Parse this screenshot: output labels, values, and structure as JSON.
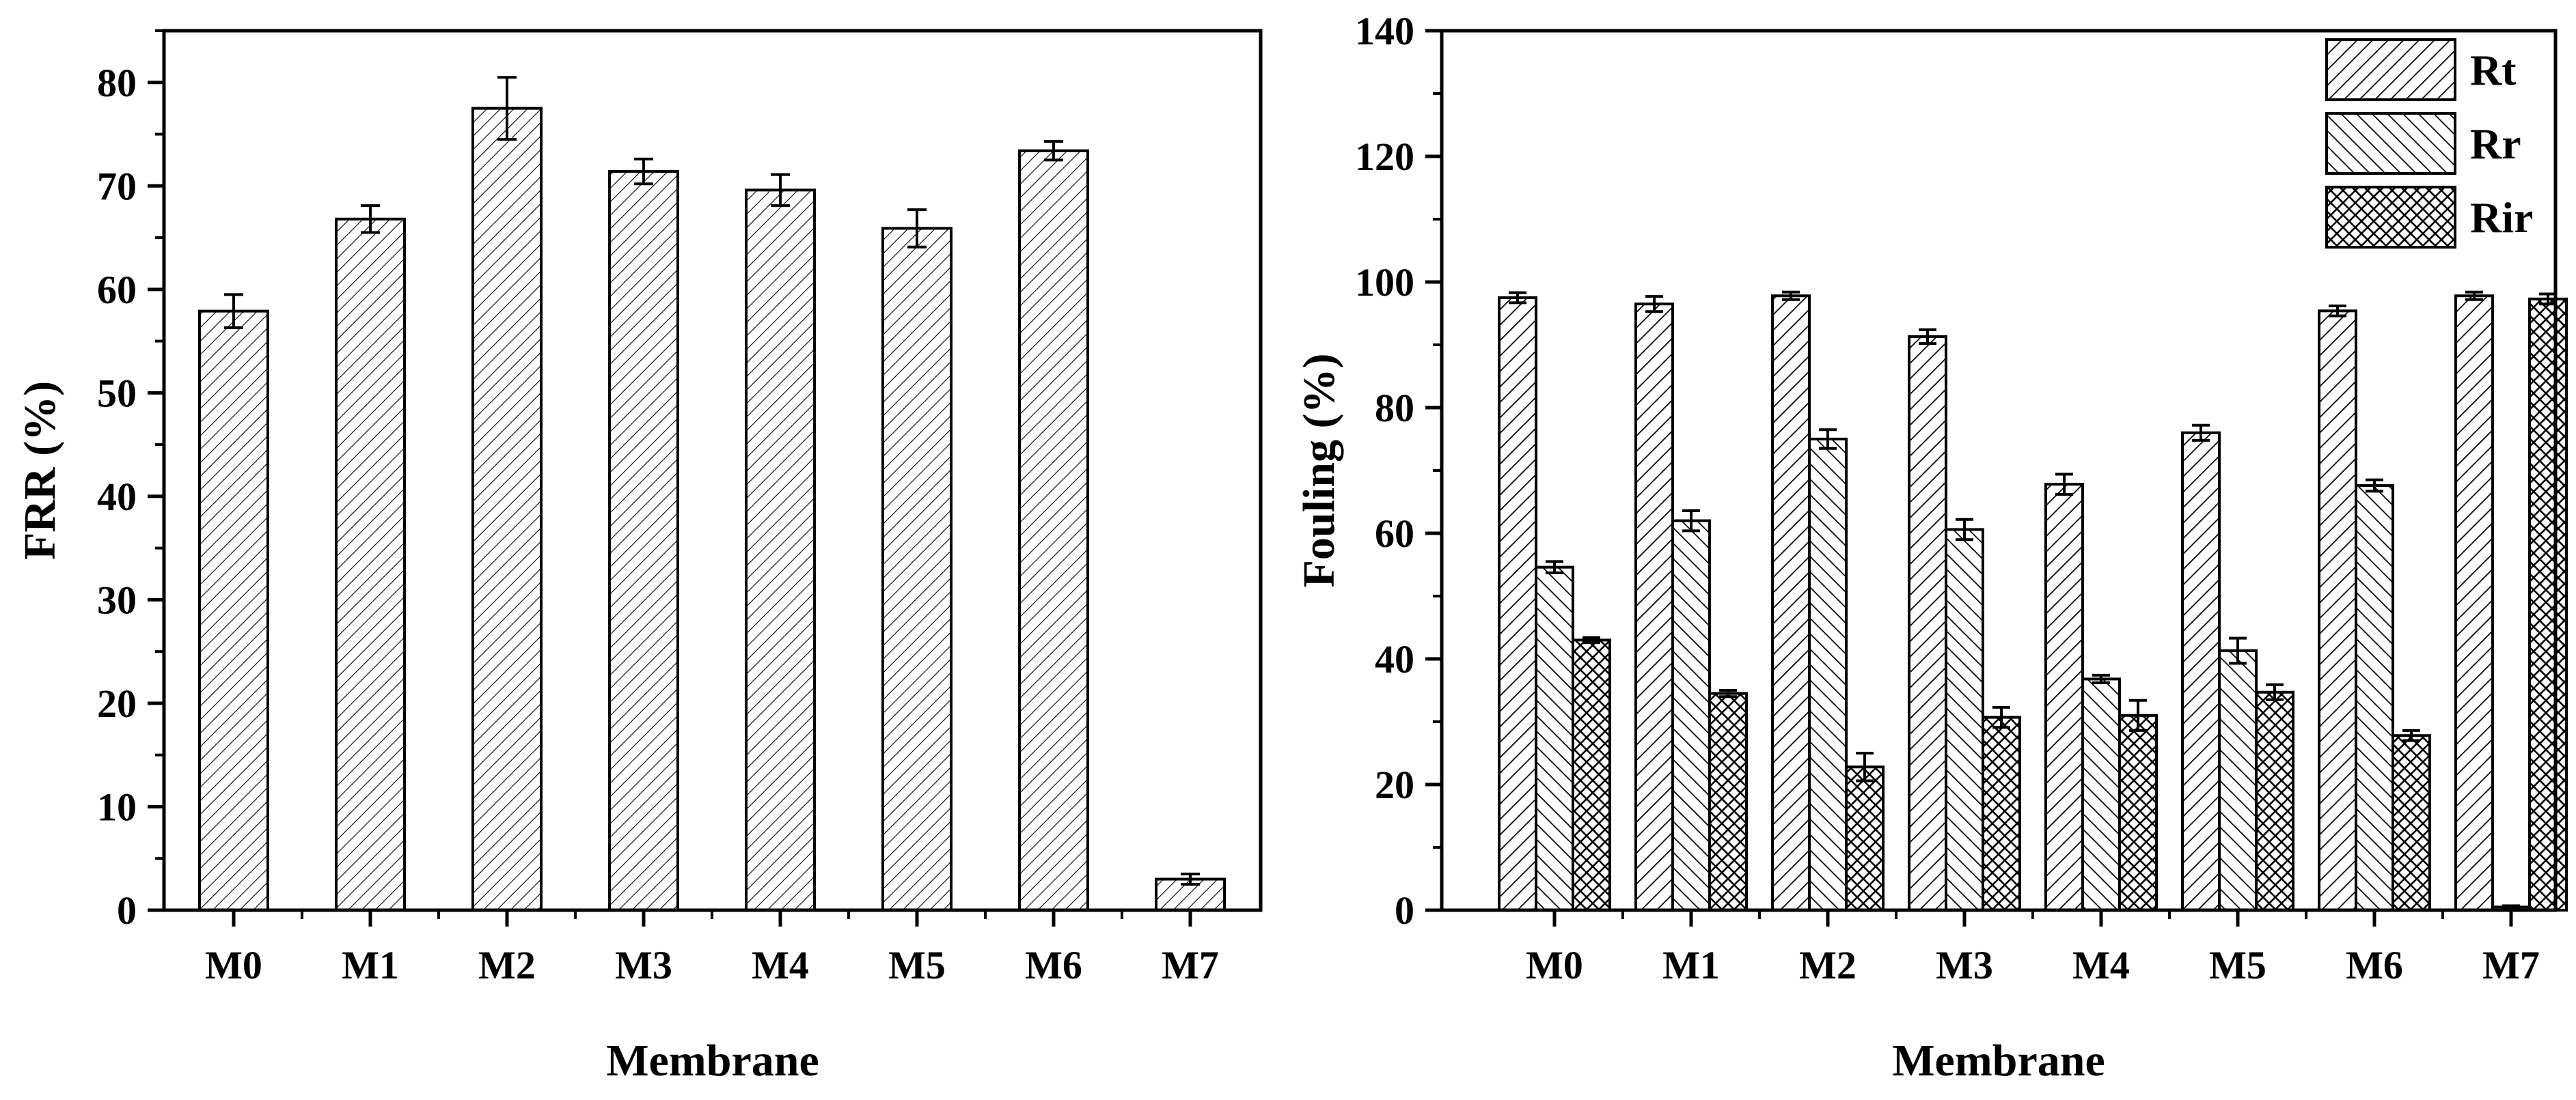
{
  "chart_data": [
    {
      "type": "bar",
      "id": "frr",
      "xlabel": "Membrane",
      "ylabel": "FRR (%)",
      "ylim": [
        0,
        85
      ],
      "yticks": [
        0,
        10,
        20,
        30,
        40,
        50,
        60,
        70,
        80
      ],
      "ytick_labels": [
        "0",
        "10",
        "20",
        "30",
        "40",
        "50",
        "60",
        "70",
        "80"
      ],
      "categories": [
        "M0",
        "M1",
        "M2",
        "M3",
        "M4",
        "M5",
        "M6",
        "M7"
      ],
      "series": [
        {
          "name": "FRR",
          "pattern": "hatch-fine",
          "values": [
            57.9,
            66.8,
            77.5,
            71.4,
            69.6,
            65.9,
            73.4,
            3.0
          ],
          "errors": [
            1.6,
            1.3,
            3.0,
            1.2,
            1.5,
            1.8,
            0.9,
            0.5
          ]
        }
      ]
    },
    {
      "type": "bar",
      "id": "fouling",
      "xlabel": "Membrane",
      "ylabel": "Fouling (%)",
      "ylim": [
        0,
        140
      ],
      "yticks": [
        0,
        20,
        40,
        60,
        80,
        100,
        120,
        140
      ],
      "ytick_labels": [
        "0",
        "20",
        "40",
        "60",
        "80",
        "100",
        "120",
        "140"
      ],
      "categories": [
        "M0",
        "M1",
        "M2",
        "M3",
        "M4",
        "M5",
        "M6",
        "M7"
      ],
      "legend_position": "top-right",
      "series": [
        {
          "name": "Rt",
          "pattern": "hatch-forward",
          "values": [
            97.5,
            96.5,
            97.8,
            91.3,
            67.8,
            76.0,
            95.4,
            97.8
          ],
          "errors": [
            0.8,
            1.2,
            0.6,
            1.1,
            1.6,
            1.2,
            0.8,
            0.6
          ]
        },
        {
          "name": "Rr",
          "pattern": "hatch-back",
          "values": [
            54.6,
            62.0,
            75.0,
            60.6,
            36.8,
            41.3,
            67.6,
            0.5
          ],
          "errors": [
            0.9,
            1.6,
            1.5,
            1.6,
            0.6,
            2.0,
            0.9,
            0.2
          ]
        },
        {
          "name": "Rir",
          "pattern": "crosshatch",
          "values": [
            43.0,
            34.5,
            22.8,
            30.7,
            31.0,
            34.7,
            27.8,
            97.3
          ],
          "errors": [
            0.4,
            0.5,
            2.2,
            1.6,
            2.4,
            1.2,
            0.8,
            0.8
          ]
        }
      ]
    }
  ]
}
